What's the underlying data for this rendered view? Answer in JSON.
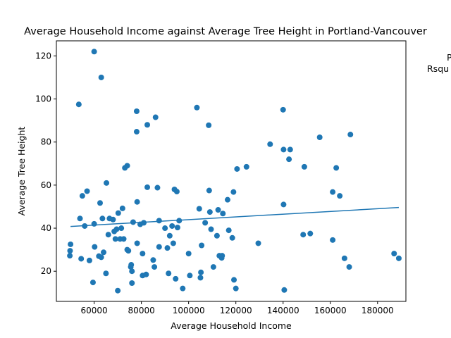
{
  "chart_data": {
    "type": "scatter",
    "title": "Average Household Income against Average Tree Height in Portland-Vancouver",
    "xlabel": "Average Household Income",
    "ylabel": "Average Tree Height",
    "xlim": [
      44000,
      192000
    ],
    "ylim": [
      6,
      127
    ],
    "xticks": [
      60000,
      80000,
      100000,
      120000,
      140000,
      160000,
      180000
    ],
    "yticks": [
      20,
      40,
      60,
      80,
      100,
      120
    ],
    "grid": false,
    "annotations": [
      "P",
      "Rsqu"
    ],
    "point_color": "#1f77b4",
    "line_color": "#1f77b4",
    "trendline": {
      "x": [
        50000,
        189000
      ],
      "y": [
        40.8,
        49.6
      ]
    },
    "points": [
      [
        53500,
        97.5
      ],
      [
        60000,
        122
      ],
      [
        63000,
        110
      ],
      [
        50000,
        32.5
      ],
      [
        49800,
        29.5
      ],
      [
        49700,
        27.2
      ],
      [
        54000,
        44.5
      ],
      [
        54500,
        25.8
      ],
      [
        55000,
        55
      ],
      [
        56000,
        41
      ],
      [
        57000,
        57.2
      ],
      [
        58000,
        25
      ],
      [
        59500,
        14.8
      ],
      [
        60000,
        42
      ],
      [
        60200,
        31.3
      ],
      [
        62000,
        27
      ],
      [
        62500,
        51.7
      ],
      [
        63000,
        26.5
      ],
      [
        63500,
        44.5
      ],
      [
        64000,
        28.8
      ],
      [
        65000,
        19
      ],
      [
        65200,
        61
      ],
      [
        66000,
        37
      ],
      [
        66500,
        44.5
      ],
      [
        68000,
        44
      ],
      [
        68500,
        38.5
      ],
      [
        69000,
        35
      ],
      [
        69500,
        39.5
      ],
      [
        70000,
        11
      ],
      [
        70200,
        47
      ],
      [
        71000,
        35
      ],
      [
        71500,
        40
      ],
      [
        72000,
        49.2
      ],
      [
        72500,
        35
      ],
      [
        73000,
        68
      ],
      [
        74000,
        69
      ],
      [
        74000,
        30
      ],
      [
        74500,
        29.5
      ],
      [
        75500,
        22
      ],
      [
        75700,
        23
      ],
      [
        76000,
        14.5
      ],
      [
        76000,
        20
      ],
      [
        76500,
        42.8
      ],
      [
        78000,
        94.3
      ],
      [
        78000,
        84.8
      ],
      [
        78200,
        33
      ],
      [
        78200,
        52.2
      ],
      [
        79500,
        41.8
      ],
      [
        80500,
        28.2
      ],
      [
        80500,
        18
      ],
      [
        81000,
        42.5
      ],
      [
        82000,
        18.5
      ],
      [
        82500,
        88
      ],
      [
        82500,
        59
      ],
      [
        85000,
        25.2
      ],
      [
        85500,
        22
      ],
      [
        86000,
        91.5
      ],
      [
        86800,
        58.8
      ],
      [
        87500,
        31.3
      ],
      [
        87500,
        43.5
      ],
      [
        90000,
        40
      ],
      [
        91000,
        30.8
      ],
      [
        91500,
        19
      ],
      [
        92000,
        36.5
      ],
      [
        93000,
        41
      ],
      [
        93500,
        33
      ],
      [
        94000,
        58
      ],
      [
        94500,
        16.5
      ],
      [
        95000,
        57
      ],
      [
        95300,
        40.3
      ],
      [
        96000,
        43.5
      ],
      [
        97500,
        12
      ],
      [
        100000,
        28.2
      ],
      [
        100500,
        18
      ],
      [
        103500,
        96
      ],
      [
        104500,
        49
      ],
      [
        105000,
        17
      ],
      [
        105200,
        19.5
      ],
      [
        105500,
        32
      ],
      [
        107000,
        42.5
      ],
      [
        108500,
        87.8
      ],
      [
        108700,
        57.5
      ],
      [
        109000,
        47.5
      ],
      [
        109500,
        39.5
      ],
      [
        110500,
        22
      ],
      [
        112000,
        36.5
      ],
      [
        112500,
        48.5
      ],
      [
        113000,
        27.2
      ],
      [
        114000,
        26.2
      ],
      [
        114200,
        27.2
      ],
      [
        114500,
        46.8
      ],
      [
        116500,
        53.2
      ],
      [
        117000,
        39
      ],
      [
        118500,
        35.5
      ],
      [
        119000,
        56.8
      ],
      [
        119200,
        16
      ],
      [
        120000,
        12
      ],
      [
        120500,
        67.5
      ],
      [
        124500,
        68.5
      ],
      [
        129500,
        33
      ],
      [
        134500,
        79
      ],
      [
        140000,
        95
      ],
      [
        140200,
        76.5
      ],
      [
        140200,
        51
      ],
      [
        140500,
        11.3
      ],
      [
        142500,
        72
      ],
      [
        143000,
        76.5
      ],
      [
        148500,
        37
      ],
      [
        149000,
        68.5
      ],
      [
        151500,
        37.5
      ],
      [
        155500,
        82.2
      ],
      [
        161000,
        56.8
      ],
      [
        161000,
        34.5
      ],
      [
        162500,
        68
      ],
      [
        164000,
        55
      ],
      [
        166000,
        26
      ],
      [
        168000,
        22
      ],
      [
        168500,
        83.5
      ],
      [
        187000,
        28.2
      ],
      [
        189000,
        26
      ]
    ]
  }
}
